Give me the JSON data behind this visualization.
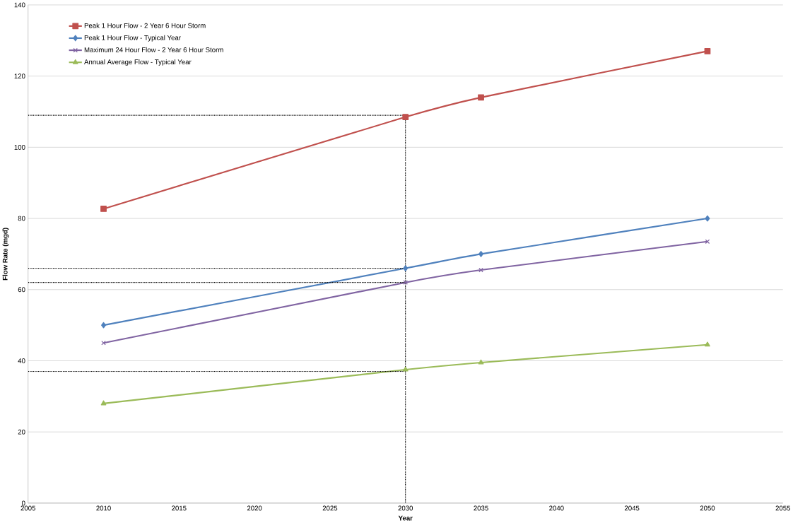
{
  "chart_data": {
    "type": "line",
    "xlabel": "Year",
    "ylabel": "Flow Rate (mgd)",
    "x": [
      2010,
      2030,
      2035,
      2050
    ],
    "series": [
      {
        "name": "Peak 1 Hour Flow - 2 Year 6 Hour Storm",
        "color": "#c0504d",
        "marker": "square",
        "values": [
          82.7,
          108.5,
          114,
          127
        ]
      },
      {
        "name": "Peak 1 Hour Flow - Typical Year",
        "color": "#4f81bd",
        "marker": "diamond",
        "values": [
          50,
          66,
          70,
          80
        ]
      },
      {
        "name": "Maximum 24 Hour Flow - 2 Year 6 Hour Storm",
        "color": "#8064a2",
        "marker": "cross",
        "values": [
          45,
          62,
          65.5,
          73.5
        ]
      },
      {
        "name": "Annual Average Flow - Typical Year",
        "color": "#9bbb59",
        "marker": "triangle",
        "values": [
          28,
          37.5,
          39.5,
          44.5
        ]
      }
    ],
    "xlim": [
      2005,
      2055
    ],
    "xticks": [
      2005,
      2010,
      2015,
      2020,
      2025,
      2030,
      2035,
      2040,
      2045,
      2050,
      2055
    ],
    "ylim": [
      0,
      140
    ],
    "yticks": [
      0,
      20,
      40,
      60,
      80,
      100,
      120,
      140
    ],
    "grid": "y",
    "legend": "top left",
    "ref_lines": [
      {
        "axis": "x",
        "value": 2030,
        "color": "#000000",
        "line_style": "dotted"
      },
      {
        "axis": "y",
        "value": 109,
        "color": "#000000",
        "line_style": "dotted"
      },
      {
        "axis": "y",
        "value": 66,
        "color": "#000000",
        "line_style": "dotted"
      },
      {
        "axis": "y",
        "value": 62,
        "color": "#000000",
        "line_style": "dotted"
      },
      {
        "axis": "y",
        "value": 37,
        "color": "#000000",
        "line_style": "dotted"
      }
    ]
  }
}
